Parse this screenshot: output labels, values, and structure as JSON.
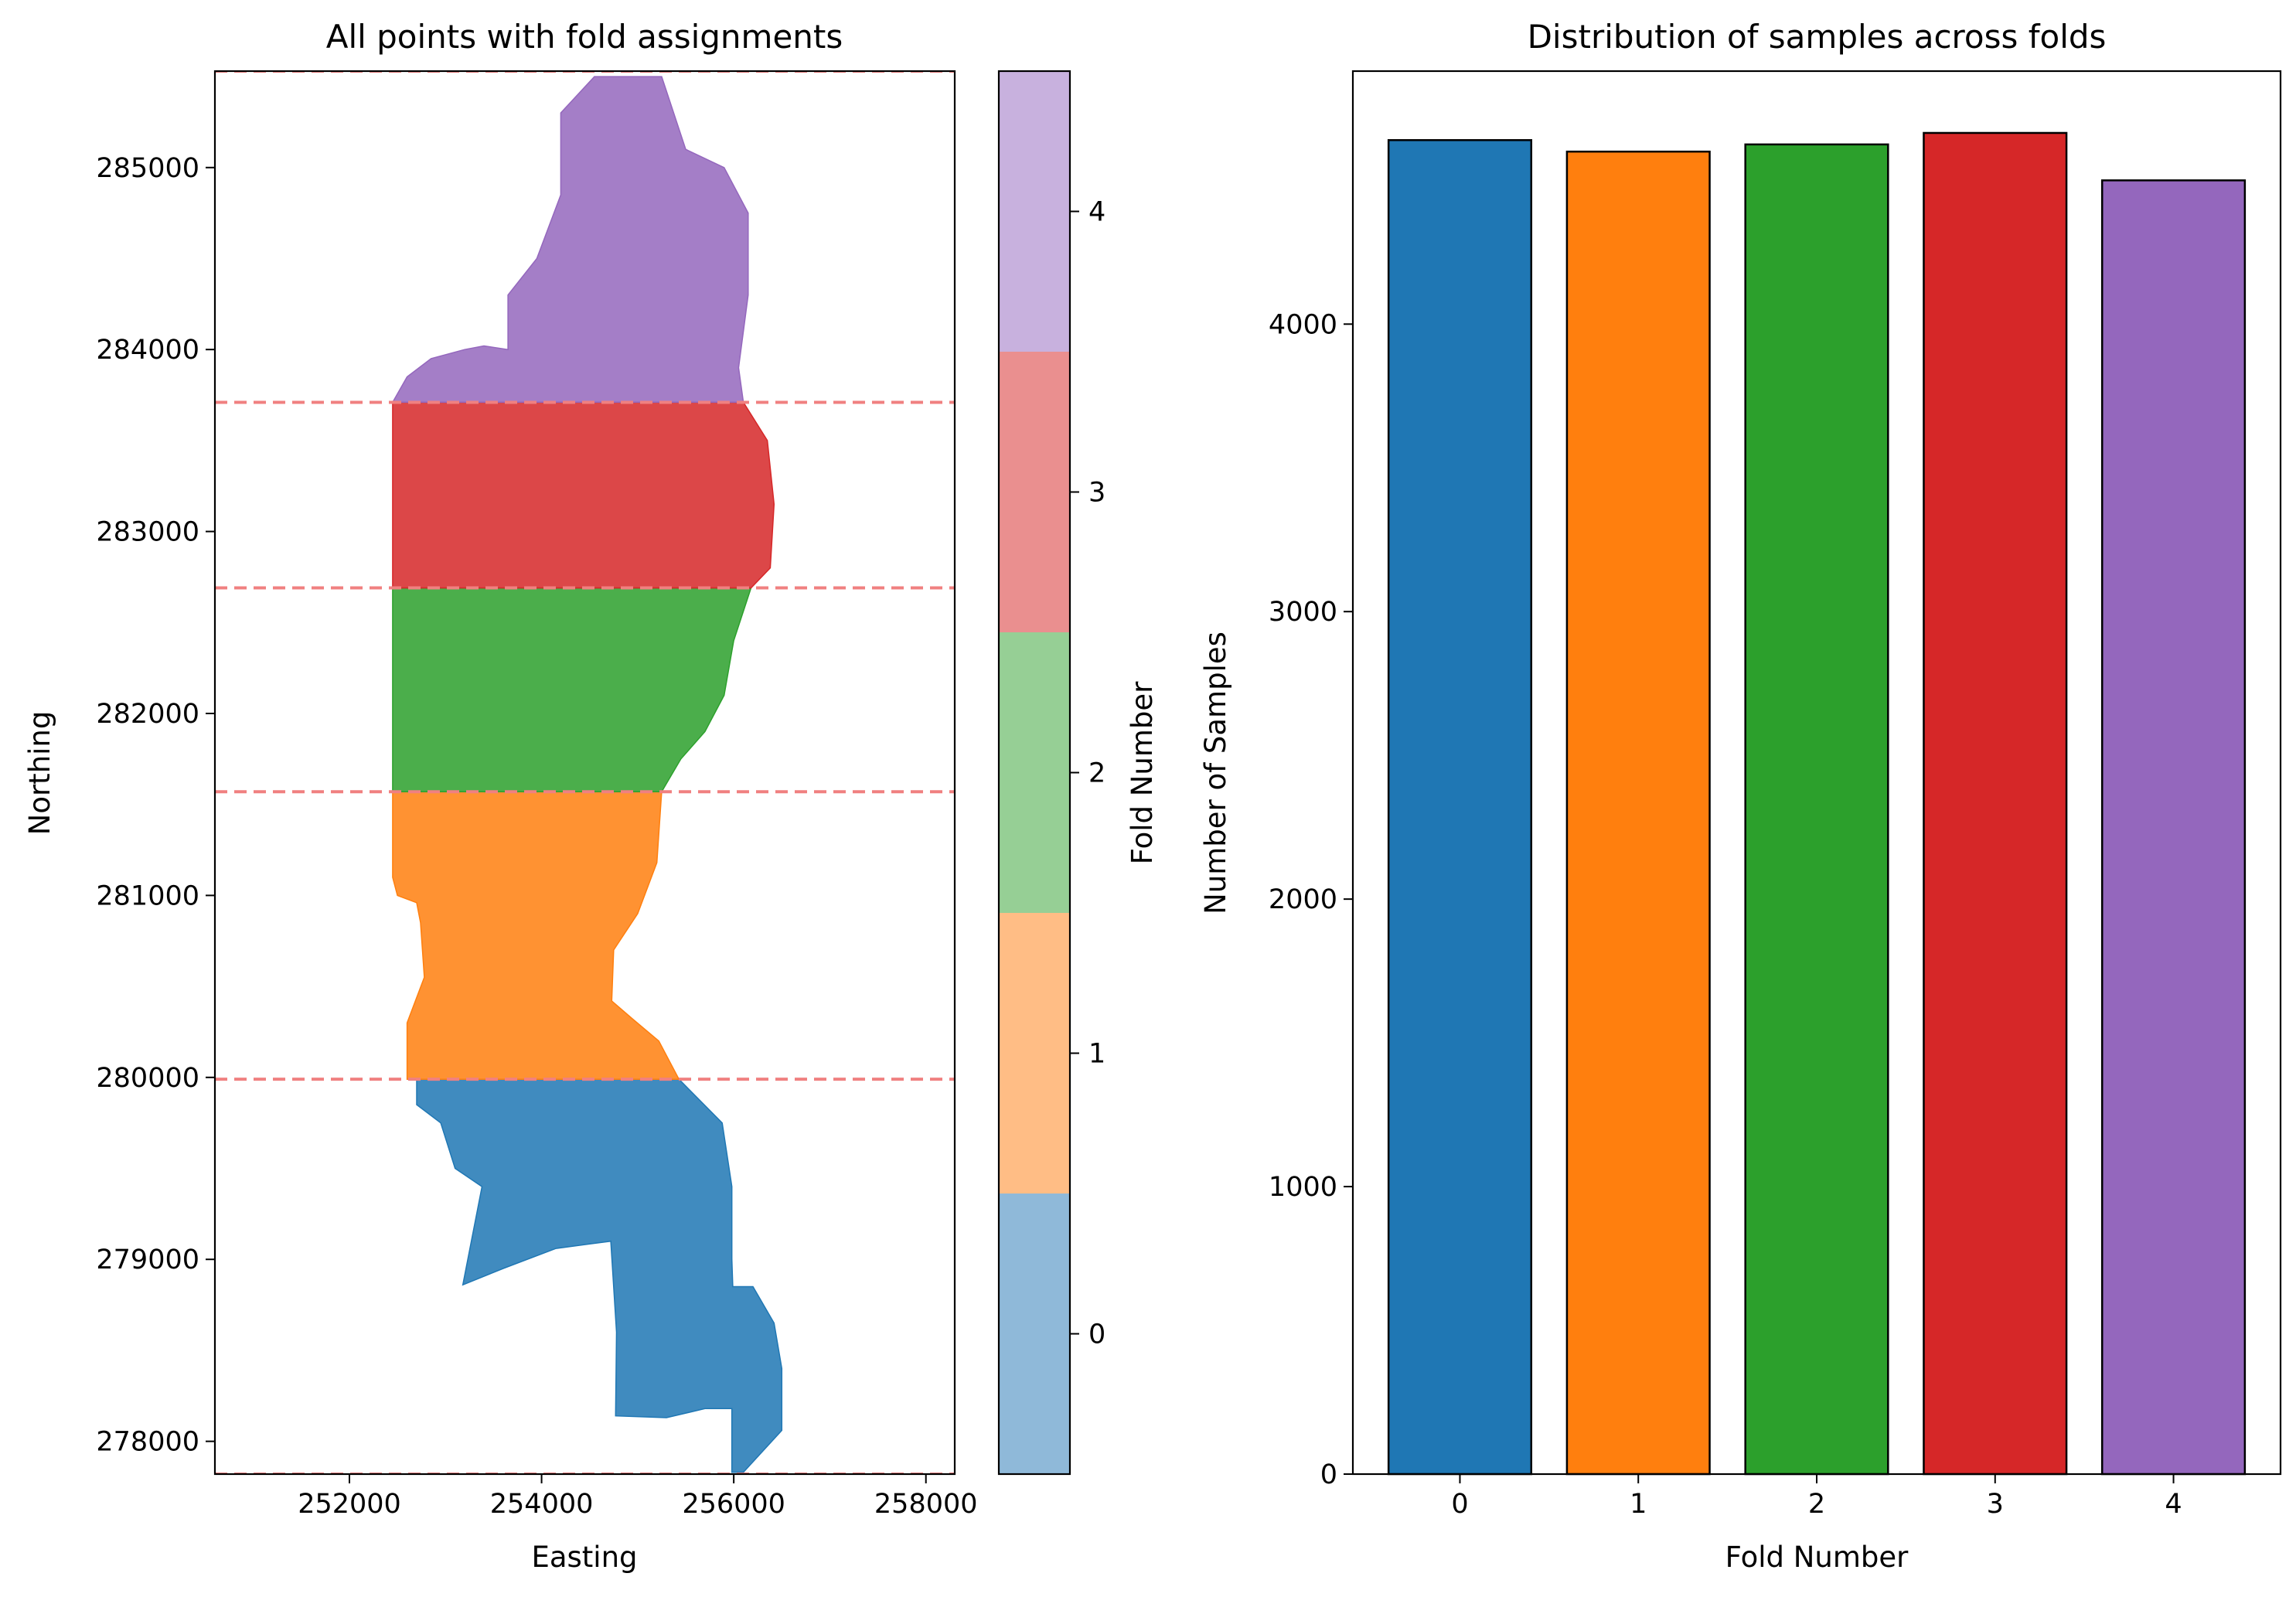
{
  "chart_data": [
    {
      "type": "scatter",
      "title": "All points with fold assignments",
      "xlabel": "Easting",
      "ylabel": "Northing",
      "xlim": [
        250600,
        258300
      ],
      "ylim": [
        277820,
        285530
      ],
      "xticks": [
        252000,
        254000,
        256000,
        258000
      ],
      "xtick_labels": [
        "252000",
        "254000",
        "256000",
        "258000"
      ],
      "yticks": [
        278000,
        279000,
        280000,
        281000,
        282000,
        283000,
        284000,
        285000
      ],
      "ytick_labels": [
        "278000",
        "279000",
        "280000",
        "281000",
        "282000",
        "283000",
        "284000",
        "285000"
      ],
      "fold_boundaries_northing": [
        277820,
        279990,
        281570,
        282690,
        283710,
        285530
      ],
      "fold_boundary_style": "red dashed horizontal lines",
      "grid": false,
      "colorbar": {
        "label": "Fold Number",
        "ticks": [
          0,
          1,
          2,
          3,
          4
        ],
        "tick_labels": [
          "0",
          "1",
          "2",
          "3",
          "4"
        ],
        "colors": [
          "#8fb9d9",
          "#ffbd85",
          "#96cf95",
          "#ea8f8f",
          "#c8b1de"
        ]
      },
      "series": [
        {
          "name": "0",
          "color": "#1f77b4",
          "outline": [
            [
              252700,
              279990
            ],
            [
              255430,
              279990
            ],
            [
              255880,
              279750
            ],
            [
              255980,
              279400
            ],
            [
              255980,
              279000
            ],
            [
              255990,
              278850
            ],
            [
              256200,
              278850
            ],
            [
              256420,
              278650
            ],
            [
              256500,
              278400
            ],
            [
              256500,
              278060
            ],
            [
              256100,
              277830
            ],
            [
              255980,
              277830
            ],
            [
              255980,
              278180
            ],
            [
              255700,
              278180
            ],
            [
              255300,
              278130
            ],
            [
              254770,
              278140
            ],
            [
              254780,
              278600
            ],
            [
              254720,
              279100
            ],
            [
              254150,
              279060
            ],
            [
              253600,
              278950
            ],
            [
              253180,
              278860
            ],
            [
              253380,
              279400
            ],
            [
              253100,
              279500
            ],
            [
              252950,
              279750
            ],
            [
              252700,
              279850
            ]
          ]
        },
        {
          "name": "1",
          "color": "#ff7f0e",
          "outline": [
            [
              252450,
              281570
            ],
            [
              255250,
              281570
            ],
            [
              255200,
              281180
            ],
            [
              255000,
              280900
            ],
            [
              254750,
              280700
            ],
            [
              254730,
              280420
            ],
            [
              254950,
              280320
            ],
            [
              255220,
              280200
            ],
            [
              255430,
              279990
            ],
            [
              252600,
              279990
            ],
            [
              252600,
              280300
            ],
            [
              252780,
              280550
            ],
            [
              252740,
              280850
            ],
            [
              252700,
              280960
            ],
            [
              252500,
              281000
            ],
            [
              252450,
              281100
            ]
          ]
        },
        {
          "name": "2",
          "color": "#2ca02c",
          "outline": [
            [
              252450,
              282690
            ],
            [
              256180,
              282690
            ],
            [
              256000,
              282400
            ],
            [
              255900,
              282100
            ],
            [
              255700,
              281900
            ],
            [
              255450,
              281750
            ],
            [
              255250,
              281570
            ],
            [
              252450,
              281570
            ]
          ]
        },
        {
          "name": "3",
          "color": "#d62728",
          "outline": [
            [
              252450,
              283710
            ],
            [
              256100,
              283710
            ],
            [
              256350,
              283500
            ],
            [
              256420,
              283150
            ],
            [
              256380,
              282800
            ],
            [
              256180,
              282690
            ],
            [
              252450,
              282690
            ],
            [
              252450,
              283500
            ]
          ]
        },
        {
          "name": "4",
          "color": "#9467bd",
          "outline": [
            [
              252450,
              283710
            ],
            [
              256100,
              283710
            ],
            [
              256050,
              283900
            ],
            [
              256150,
              284300
            ],
            [
              256150,
              284750
            ],
            [
              255900,
              285000
            ],
            [
              255500,
              285100
            ],
            [
              255250,
              285500
            ],
            [
              254550,
              285500
            ],
            [
              254200,
              285300
            ],
            [
              254200,
              284850
            ],
            [
              253950,
              284500
            ],
            [
              253650,
              284300
            ],
            [
              253650,
              284000
            ],
            [
              253400,
              284020
            ],
            [
              253200,
              284000
            ],
            [
              252850,
              283950
            ],
            [
              252600,
              283850
            ]
          ]
        }
      ]
    },
    {
      "type": "bar",
      "title": "Distribution of samples across folds",
      "xlabel": "Fold Number",
      "ylabel": "Number of Samples",
      "categories": [
        "0",
        "1",
        "2",
        "3",
        "4"
      ],
      "values": [
        4640,
        4600,
        4625,
        4665,
        4500
      ],
      "colors": [
        "#1f77b4",
        "#ff7f0e",
        "#2ca02c",
        "#d62728",
        "#9467bd"
      ],
      "ylim": [
        0,
        4880
      ],
      "yticks": [
        0,
        1000,
        2000,
        3000,
        4000
      ],
      "ytick_labels": [
        "0",
        "1000",
        "2000",
        "3000",
        "4000"
      ],
      "grid": false
    }
  ]
}
